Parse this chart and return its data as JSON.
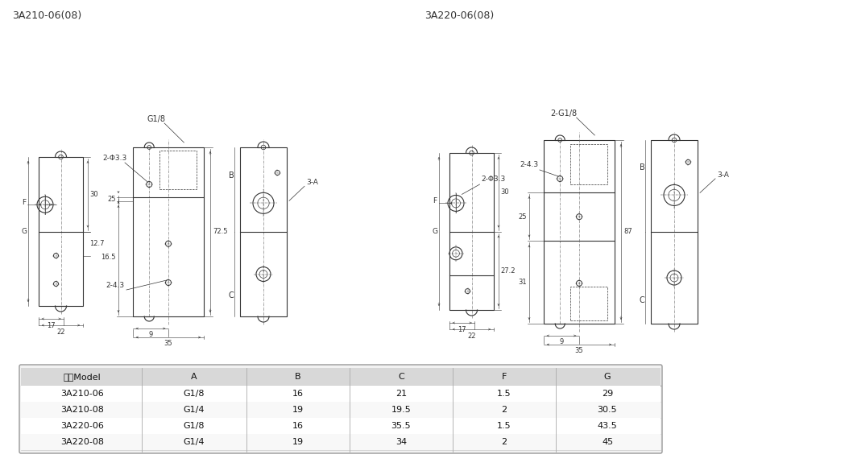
{
  "title_left": "3A210-06(08)",
  "title_right": "3A220-06(08)",
  "bg_color": "#ffffff",
  "line_color": "#333333",
  "table_headers": [
    "型号Model",
    "A",
    "B",
    "C",
    "F",
    "G"
  ],
  "table_rows": [
    [
      "3A210-06",
      "G1/8",
      "16",
      "21",
      "1.5",
      "29"
    ],
    [
      "3A210-08",
      "G1/4",
      "19",
      "19.5",
      "2",
      "30.5"
    ],
    [
      "3A220-06",
      "G1/8",
      "16",
      "35.5",
      "1.5",
      "43.5"
    ],
    [
      "3A220-08",
      "G1/4",
      "19",
      "34",
      "2",
      "45"
    ]
  ],
  "font_size_title": 9,
  "font_size_dim": 6.5,
  "font_size_table": 8
}
